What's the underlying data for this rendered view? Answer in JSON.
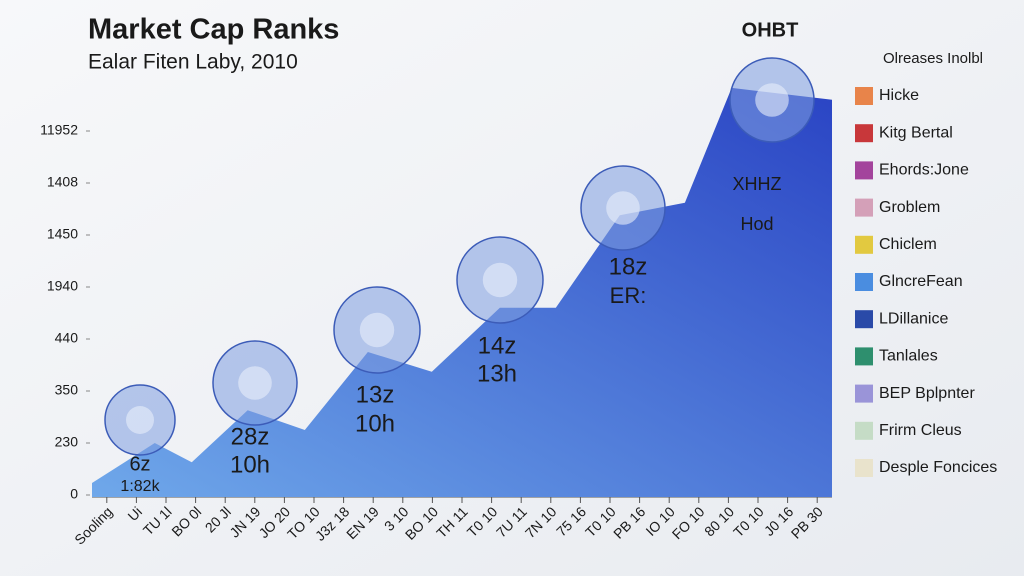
{
  "chart_data": {
    "type": "area",
    "title": "Market Cap Ranks",
    "subtitle": "Ealar Fiten Laby, 2010",
    "logo": "OHBT",
    "x": [
      -0.5,
      1.62,
      2.87,
      4.76,
      6.69,
      8.82,
      10.98,
      13.28,
      15.17,
      17.33,
      19.53,
      21.11,
      24.5
    ],
    "values": [
      0.23,
      1.0,
      0.63,
      1.63,
      1.25,
      2.75,
      2.37,
      3.6,
      3.6,
      5.38,
      5.62,
      7.83,
      7.6
    ],
    "colors": [
      "#6fa8ea",
      "#2a44c4"
    ],
    "xlim": [
      -0.5,
      24.5
    ],
    "xticks": [
      {
        "value": 0,
        "label": "Sooling"
      },
      {
        "value": 1,
        "label": "Ui"
      },
      {
        "value": 2,
        "label": "TU 1l"
      },
      {
        "value": 3,
        "label": "BO 0l"
      },
      {
        "value": 4,
        "label": "20 Jl"
      },
      {
        "value": 5,
        "label": "JN 19"
      },
      {
        "value": 6,
        "label": "JO 20"
      },
      {
        "value": 7,
        "label": "TO 10"
      },
      {
        "value": 8,
        "label": "J3z 18"
      },
      {
        "value": 9,
        "label": "EN 19"
      },
      {
        "value": 10,
        "label": "3 10"
      },
      {
        "value": 11,
        "label": "BO 10"
      },
      {
        "value": 12,
        "label": "TH 11"
      },
      {
        "value": 13,
        "label": "T0 10"
      },
      {
        "value": 14,
        "label": "7U 11"
      },
      {
        "value": 15,
        "label": "7N 10"
      },
      {
        "value": 16,
        "label": "75 16"
      },
      {
        "value": 17,
        "label": "T0 10"
      },
      {
        "value": 18,
        "label": "PB 16"
      },
      {
        "value": 19,
        "label": "IO 10"
      },
      {
        "value": 20,
        "label": "FO 10"
      },
      {
        "value": 21,
        "label": "80 10"
      },
      {
        "value": 22,
        "label": "T0 10"
      },
      {
        "value": 23,
        "label": "J0 16"
      },
      {
        "value": 24,
        "label": "PB 30"
      }
    ],
    "ylim": [
      0,
      8
    ],
    "yticks": [
      0,
      {
        "value": 1,
        "label": "230"
      },
      {
        "value": 2,
        "label": "350"
      },
      {
        "value": 3,
        "label": "440"
      },
      {
        "value": 4,
        "label": "1940"
      },
      {
        "value": 5,
        "label": "1450"
      },
      {
        "value": 6,
        "label": "1408"
      },
      {
        "value": 7,
        "label": "11952"
      }
    ],
    "annotations": [
      [
        "6z",
        "1:82k"
      ],
      [
        "28z",
        "10h"
      ],
      [
        "13z",
        "10h"
      ],
      [
        "14z",
        "13h"
      ],
      [
        "18z",
        "ER:"
      ],
      [
        "XHHZ",
        "Hod"
      ]
    ],
    "legend": {
      "title": "Olreases Inolbl",
      "items": [
        {
          "name": "Hicke",
          "color": "#e8844a"
        },
        {
          "name": "Kitg Bertal",
          "color": "#c8373a"
        },
        {
          "name": "Ehords:Jone",
          "color": "#a3449c"
        },
        {
          "name": "Groblem",
          "color": "#d4a0b8"
        },
        {
          "name": "Chiclem",
          "color": "#e2c940"
        },
        {
          "name": "GlncreFean",
          "color": "#4a8de0"
        },
        {
          "name": "LDillanice",
          "color": "#2a4aa8"
        },
        {
          "name": "Tanlales",
          "color": "#2e8f6e"
        },
        {
          "name": "BEP Bplpnter",
          "color": "#9a94d8"
        },
        {
          "name": "Frirm Cleus",
          "color": "#c5dcc6"
        },
        {
          "name": "Desple Foncices",
          "color": "#e9e3cc"
        }
      ]
    }
  }
}
